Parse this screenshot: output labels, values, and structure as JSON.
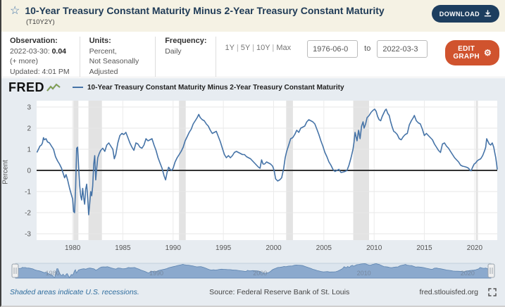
{
  "header": {
    "title": "10-Year Treasury Constant Maturity Minus 2-Year Treasury Constant Maturity",
    "series_id": "(T10Y2Y)",
    "download_label": "DOWNLOAD"
  },
  "icons": {
    "star": "☆",
    "gear": "⚙"
  },
  "meta": {
    "observation_label": "Observation:",
    "observation_date": "2022-03-30:",
    "observation_value": "0.04",
    "observation_more": "(+ more)",
    "updated": "Updated: 4:01 PM CDT",
    "units_label": "Units:",
    "units_line1": "Percent,",
    "units_line2": "Not Seasonally Adjusted",
    "frequency_label": "Frequency:",
    "frequency_value": "Daily"
  },
  "range_controls": {
    "presets": [
      "1Y",
      "5Y",
      "10Y",
      "Max"
    ],
    "start_date": "1976-06-0",
    "to_label": "to",
    "end_date": "2022-03-3",
    "edit_graph_label": "EDIT GRAPH"
  },
  "graph": {
    "brand": "FRED",
    "legend_label": "10-Year Treasury Constant Maturity Minus 2-Year Treasury Constant Maturity",
    "y_axis_label": "Percent"
  },
  "footer": {
    "recessions_note": "Shaded areas indicate U.S. recessions.",
    "source": "Source: Federal Reserve Bank of St. Louis",
    "site": "fred.stlouisfed.org"
  },
  "colors": {
    "line": "#4573a7",
    "recession": "#e3e3e3",
    "zero_line": "#333333",
    "grid": "#e7e7e7",
    "vgrid": "#ebebeb",
    "axis_text": "#555555",
    "plot_bg": "#ffffff",
    "nav_fill": "#8ba9cd",
    "nav_stroke": "#5d84b0",
    "nav_track": "#dce5ee",
    "nav_border": "#c2cfdc",
    "nav_label": "#6b7685",
    "accent_orange": "#d0532e",
    "navy": "#1d3e5f",
    "header_bg": "#f5f2e4",
    "panel_bg": "#e7ecf1"
  },
  "chart_data": {
    "type": "line",
    "title": "10-Year Treasury Constant Maturity Minus 2-Year Treasury Constant Maturity",
    "xlabel": "",
    "ylabel": "Percent",
    "x_range": [
      1976.42,
      2022.25
    ],
    "ylim": [
      -3,
      3
    ],
    "y_ticks": [
      3,
      2,
      1,
      0,
      -1,
      -2,
      -3
    ],
    "x_ticks": [
      1980,
      1985,
      1990,
      1995,
      2000,
      2005,
      2010,
      2015,
      2020
    ],
    "nav_x_labels": [
      1980,
      1990,
      2000,
      2010,
      2020
    ],
    "grid": true,
    "legend_position": "top",
    "recessions": [
      [
        1980.08,
        1980.58
      ],
      [
        1981.58,
        1982.92
      ],
      [
        1990.58,
        1991.25
      ],
      [
        2001.25,
        2001.92
      ],
      [
        2007.92,
        2009.5
      ],
      [
        2020.12,
        2020.33
      ]
    ],
    "series": [
      {
        "name": "10-Year Treasury Constant Maturity Minus 2-Year Treasury Constant Maturity",
        "last_observation": {
          "date": "2022-03-30",
          "value": 0.04
        },
        "points": [
          [
            1976.45,
            0.85
          ],
          [
            1976.6,
            1.0
          ],
          [
            1976.75,
            1.15
          ],
          [
            1976.9,
            1.2
          ],
          [
            1977.0,
            1.3
          ],
          [
            1977.1,
            1.55
          ],
          [
            1977.2,
            1.45
          ],
          [
            1977.35,
            1.5
          ],
          [
            1977.5,
            1.35
          ],
          [
            1977.7,
            1.3
          ],
          [
            1977.9,
            1.15
          ],
          [
            1978.1,
            1.0
          ],
          [
            1978.3,
            0.65
          ],
          [
            1978.5,
            0.45
          ],
          [
            1978.7,
            0.3
          ],
          [
            1978.9,
            0.1
          ],
          [
            1979.0,
            -0.05
          ],
          [
            1979.2,
            -0.35
          ],
          [
            1979.35,
            -0.2
          ],
          [
            1979.5,
            -0.45
          ],
          [
            1979.7,
            -0.85
          ],
          [
            1979.85,
            -1.1
          ],
          [
            1980.0,
            -1.35
          ],
          [
            1980.1,
            -1.95
          ],
          [
            1980.2,
            -2.0
          ],
          [
            1980.3,
            -0.8
          ],
          [
            1980.4,
            1.05
          ],
          [
            1980.5,
            1.1
          ],
          [
            1980.6,
            0.2
          ],
          [
            1980.7,
            -0.7
          ],
          [
            1980.8,
            -1.2
          ],
          [
            1980.9,
            -1.4
          ],
          [
            1981.0,
            -0.85
          ],
          [
            1981.1,
            -1.3
          ],
          [
            1981.2,
            -1.6
          ],
          [
            1981.3,
            -0.9
          ],
          [
            1981.4,
            -0.65
          ],
          [
            1981.5,
            -1.3
          ],
          [
            1981.6,
            -2.1
          ],
          [
            1981.7,
            -1.6
          ],
          [
            1981.8,
            -1.0
          ],
          [
            1981.9,
            -1.2
          ],
          [
            1982.0,
            -0.75
          ],
          [
            1982.1,
            0.3
          ],
          [
            1982.2,
            0.7
          ],
          [
            1982.3,
            -0.45
          ],
          [
            1982.4,
            0.1
          ],
          [
            1982.5,
            0.6
          ],
          [
            1982.65,
            0.8
          ],
          [
            1982.8,
            0.95
          ],
          [
            1983.0,
            1.05
          ],
          [
            1983.2,
            0.9
          ],
          [
            1983.4,
            1.2
          ],
          [
            1983.6,
            1.3
          ],
          [
            1983.8,
            1.15
          ],
          [
            1984.0,
            1.0
          ],
          [
            1984.15,
            0.55
          ],
          [
            1984.3,
            0.75
          ],
          [
            1984.5,
            1.3
          ],
          [
            1984.7,
            1.65
          ],
          [
            1984.9,
            1.75
          ],
          [
            1985.1,
            1.7
          ],
          [
            1985.3,
            1.8
          ],
          [
            1985.5,
            1.55
          ],
          [
            1985.7,
            1.3
          ],
          [
            1985.9,
            1.1
          ],
          [
            1986.1,
            0.95
          ],
          [
            1986.3,
            1.3
          ],
          [
            1986.5,
            1.25
          ],
          [
            1986.7,
            1.1
          ],
          [
            1986.9,
            1.05
          ],
          [
            1987.1,
            1.2
          ],
          [
            1987.3,
            1.5
          ],
          [
            1987.5,
            1.4
          ],
          [
            1987.7,
            1.45
          ],
          [
            1987.9,
            1.5
          ],
          [
            1988.1,
            1.2
          ],
          [
            1988.3,
            0.95
          ],
          [
            1988.5,
            0.6
          ],
          [
            1988.7,
            0.35
          ],
          [
            1988.9,
            0.1
          ],
          [
            1989.1,
            -0.25
          ],
          [
            1989.25,
            -0.45
          ],
          [
            1989.4,
            -0.1
          ],
          [
            1989.55,
            0.15
          ],
          [
            1989.7,
            0.05
          ],
          [
            1989.85,
            0.0
          ],
          [
            1990.0,
            0.1
          ],
          [
            1990.2,
            0.4
          ],
          [
            1990.4,
            0.6
          ],
          [
            1990.6,
            0.75
          ],
          [
            1990.8,
            0.9
          ],
          [
            1991.0,
            1.1
          ],
          [
            1991.2,
            1.4
          ],
          [
            1991.4,
            1.6
          ],
          [
            1991.6,
            1.8
          ],
          [
            1991.8,
            1.95
          ],
          [
            1992.0,
            2.2
          ],
          [
            1992.2,
            2.35
          ],
          [
            1992.4,
            2.5
          ],
          [
            1992.55,
            2.65
          ],
          [
            1992.7,
            2.5
          ],
          [
            1992.9,
            2.4
          ],
          [
            1993.1,
            2.35
          ],
          [
            1993.3,
            2.2
          ],
          [
            1993.5,
            2.1
          ],
          [
            1993.7,
            1.9
          ],
          [
            1993.9,
            1.75
          ],
          [
            1994.1,
            1.8
          ],
          [
            1994.3,
            1.85
          ],
          [
            1994.5,
            1.6
          ],
          [
            1994.7,
            1.35
          ],
          [
            1994.9,
            1.05
          ],
          [
            1995.1,
            0.75
          ],
          [
            1995.3,
            0.6
          ],
          [
            1995.5,
            0.7
          ],
          [
            1995.7,
            0.6
          ],
          [
            1995.9,
            0.7
          ],
          [
            1996.1,
            0.85
          ],
          [
            1996.3,
            0.9
          ],
          [
            1996.5,
            0.85
          ],
          [
            1996.7,
            0.8
          ],
          [
            1996.9,
            0.75
          ],
          [
            1997.1,
            0.75
          ],
          [
            1997.3,
            0.65
          ],
          [
            1997.5,
            0.6
          ],
          [
            1997.7,
            0.55
          ],
          [
            1997.9,
            0.45
          ],
          [
            1998.1,
            0.35
          ],
          [
            1998.3,
            0.25
          ],
          [
            1998.5,
            0.15
          ],
          [
            1998.65,
            0.1
          ],
          [
            1998.8,
            0.5
          ],
          [
            1998.95,
            0.3
          ],
          [
            1999.1,
            0.3
          ],
          [
            1999.3,
            0.4
          ],
          [
            1999.5,
            0.35
          ],
          [
            1999.7,
            0.3
          ],
          [
            1999.9,
            0.2
          ],
          [
            2000.05,
            0.0
          ],
          [
            2000.2,
            -0.4
          ],
          [
            2000.4,
            -0.5
          ],
          [
            2000.6,
            -0.45
          ],
          [
            2000.8,
            -0.35
          ],
          [
            2001.0,
            0.1
          ],
          [
            2001.15,
            0.6
          ],
          [
            2001.3,
            0.9
          ],
          [
            2001.5,
            1.2
          ],
          [
            2001.7,
            1.5
          ],
          [
            2001.9,
            1.55
          ],
          [
            2002.1,
            1.7
          ],
          [
            2002.3,
            1.9
          ],
          [
            2002.5,
            1.8
          ],
          [
            2002.7,
            2.0
          ],
          [
            2002.9,
            2.05
          ],
          [
            2003.1,
            2.1
          ],
          [
            2003.3,
            2.3
          ],
          [
            2003.5,
            2.4
          ],
          [
            2003.7,
            2.35
          ],
          [
            2003.9,
            2.3
          ],
          [
            2004.1,
            2.2
          ],
          [
            2004.3,
            1.95
          ],
          [
            2004.5,
            1.7
          ],
          [
            2004.7,
            1.4
          ],
          [
            2004.9,
            1.15
          ],
          [
            2005.1,
            0.85
          ],
          [
            2005.3,
            0.65
          ],
          [
            2005.5,
            0.4
          ],
          [
            2005.7,
            0.25
          ],
          [
            2005.9,
            0.05
          ],
          [
            2006.1,
            -0.05
          ],
          [
            2006.3,
            0.0
          ],
          [
            2006.5,
            0.05
          ],
          [
            2006.7,
            -0.1
          ],
          [
            2006.9,
            -0.08
          ],
          [
            2007.1,
            -0.05
          ],
          [
            2007.3,
            0.0
          ],
          [
            2007.5,
            0.25
          ],
          [
            2007.7,
            0.6
          ],
          [
            2007.9,
            1.0
          ],
          [
            2008.0,
            1.35
          ],
          [
            2008.1,
            1.8
          ],
          [
            2008.2,
            1.6
          ],
          [
            2008.3,
            1.4
          ],
          [
            2008.45,
            1.9
          ],
          [
            2008.6,
            1.5
          ],
          [
            2008.75,
            2.1
          ],
          [
            2008.9,
            2.3
          ],
          [
            2009.0,
            2.0
          ],
          [
            2009.15,
            2.2
          ],
          [
            2009.3,
            2.5
          ],
          [
            2009.5,
            2.6
          ],
          [
            2009.7,
            2.75
          ],
          [
            2009.9,
            2.85
          ],
          [
            2010.05,
            2.9
          ],
          [
            2010.2,
            2.8
          ],
          [
            2010.35,
            2.55
          ],
          [
            2010.5,
            2.4
          ],
          [
            2010.65,
            2.35
          ],
          [
            2010.8,
            2.55
          ],
          [
            2010.95,
            2.7
          ],
          [
            2011.1,
            2.85
          ],
          [
            2011.2,
            2.9
          ],
          [
            2011.35,
            2.7
          ],
          [
            2011.5,
            2.6
          ],
          [
            2011.65,
            2.3
          ],
          [
            2011.8,
            2.05
          ],
          [
            2011.95,
            1.85
          ],
          [
            2012.1,
            1.8
          ],
          [
            2012.3,
            1.7
          ],
          [
            2012.5,
            1.5
          ],
          [
            2012.7,
            1.45
          ],
          [
            2012.9,
            1.6
          ],
          [
            2013.1,
            1.7
          ],
          [
            2013.3,
            1.75
          ],
          [
            2013.5,
            2.15
          ],
          [
            2013.7,
            2.35
          ],
          [
            2013.9,
            2.5
          ],
          [
            2014.0,
            2.6
          ],
          [
            2014.2,
            2.35
          ],
          [
            2014.4,
            2.25
          ],
          [
            2014.6,
            2.2
          ],
          [
            2014.8,
            1.95
          ],
          [
            2015.0,
            1.65
          ],
          [
            2015.2,
            1.75
          ],
          [
            2015.4,
            1.65
          ],
          [
            2015.6,
            1.55
          ],
          [
            2015.8,
            1.45
          ],
          [
            2016.0,
            1.25
          ],
          [
            2016.2,
            1.1
          ],
          [
            2016.4,
            0.95
          ],
          [
            2016.6,
            0.85
          ],
          [
            2016.8,
            1.25
          ],
          [
            2017.0,
            1.3
          ],
          [
            2017.2,
            1.15
          ],
          [
            2017.4,
            1.05
          ],
          [
            2017.6,
            0.9
          ],
          [
            2017.8,
            0.75
          ],
          [
            2018.0,
            0.6
          ],
          [
            2018.2,
            0.5
          ],
          [
            2018.4,
            0.4
          ],
          [
            2018.6,
            0.25
          ],
          [
            2018.8,
            0.2
          ],
          [
            2019.0,
            0.18
          ],
          [
            2019.2,
            0.15
          ],
          [
            2019.4,
            0.1
          ],
          [
            2019.55,
            0.0
          ],
          [
            2019.65,
            -0.02
          ],
          [
            2019.8,
            0.15
          ],
          [
            2019.95,
            0.3
          ],
          [
            2020.1,
            0.35
          ],
          [
            2020.25,
            0.45
          ],
          [
            2020.4,
            0.5
          ],
          [
            2020.6,
            0.55
          ],
          [
            2020.8,
            0.7
          ],
          [
            2021.0,
            0.95
          ],
          [
            2021.1,
            1.1
          ],
          [
            2021.2,
            1.5
          ],
          [
            2021.3,
            1.4
          ],
          [
            2021.45,
            1.25
          ],
          [
            2021.6,
            1.2
          ],
          [
            2021.75,
            1.3
          ],
          [
            2021.9,
            1.1
          ],
          [
            2022.0,
            0.85
          ],
          [
            2022.1,
            0.6
          ],
          [
            2022.2,
            0.25
          ],
          [
            2022.25,
            0.04
          ]
        ]
      }
    ]
  }
}
